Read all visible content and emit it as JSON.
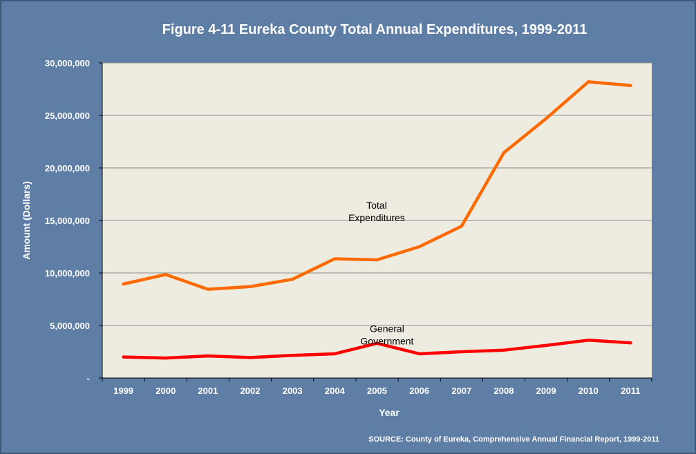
{
  "chart_data": {
    "type": "line",
    "title": "Figure 4-11 Eureka County Total Annual Expenditures, 1999-2011",
    "xlabel": "Year",
    "ylabel": "Amount (Dollars)",
    "categories": [
      "1999",
      "2000",
      "2001",
      "2002",
      "2003",
      "2004",
      "2005",
      "2006",
      "2007",
      "2008",
      "2009",
      "2010",
      "2011"
    ],
    "ylim": [
      0,
      30000000
    ],
    "y_ticks": [
      0,
      5000000,
      10000000,
      15000000,
      20000000,
      25000000,
      30000000
    ],
    "y_tick_labels": [
      "-",
      "5,000,000",
      "10,000,000",
      "15,000,000",
      "20,000,000",
      "25,000,000",
      "30,000,000"
    ],
    "grid": "horizontal",
    "legend": "none",
    "series": [
      {
        "name": "Total Expenditures",
        "color": "#ff6a00",
        "values": [
          8950000,
          9850000,
          8450000,
          8700000,
          9400000,
          11350000,
          11250000,
          12500000,
          14450000,
          21450000,
          24700000,
          28200000,
          27850000
        ]
      },
      {
        "name": "General Government",
        "color": "#ff0000",
        "values": [
          2000000,
          1900000,
          2100000,
          1950000,
          2150000,
          2300000,
          3300000,
          2300000,
          2500000,
          2650000,
          3100000,
          3600000,
          3350000
        ]
      }
    ],
    "annotations": [
      {
        "series": 0,
        "lines": [
          "Total",
          "Expenditures"
        ]
      },
      {
        "series": 1,
        "lines": [
          "General",
          "Government"
        ]
      }
    ],
    "source": "SOURCE: County of Eureka, Comprehensive Annual Financial Report, 1999-2011",
    "colors": {
      "frame": "#5f7ea6",
      "plot_bg": "#eeebe0",
      "grid": "#8e8e8e"
    }
  }
}
